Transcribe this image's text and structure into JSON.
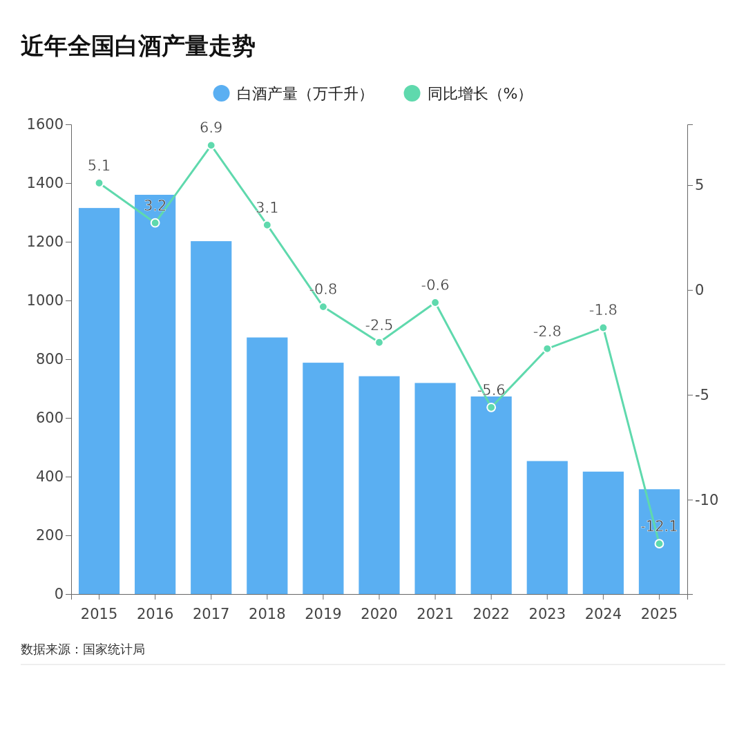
{
  "chart_data": {
    "type": "bar",
    "title": "近年全国白酒产量走势",
    "categories": [
      "2015",
      "2016",
      "2017",
      "2018",
      "2019",
      "2020",
      "2021",
      "2022",
      "2023",
      "2024",
      "2025"
    ],
    "series": [
      {
        "name": "白酒产量（万千升）",
        "color": "#5aaff2",
        "values": [
          1315,
          1360,
          1202,
          874,
          788,
          742,
          719,
          673,
          453,
          417,
          357
        ]
      },
      {
        "name": "同比增长（%）",
        "type": "line",
        "axis": "y2",
        "color": "#5fd9ad",
        "values": [
          5.1,
          3.2,
          6.9,
          3.1,
          -0.8,
          -2.5,
          -0.6,
          -5.6,
          -2.8,
          -1.8,
          -12.1
        ],
        "data_labels": true,
        "marker": "circle"
      }
    ],
    "ylim": [
      0,
      1600
    ],
    "yticks": [
      0,
      200,
      400,
      600,
      800,
      1000,
      1200,
      1400,
      1600
    ],
    "y2lim": [
      -14.5,
      7.9
    ],
    "y2ticks": [
      -10,
      -5,
      0,
      5
    ],
    "legend": "top",
    "annotations": [
      "数据来源：国家统计局"
    ]
  }
}
